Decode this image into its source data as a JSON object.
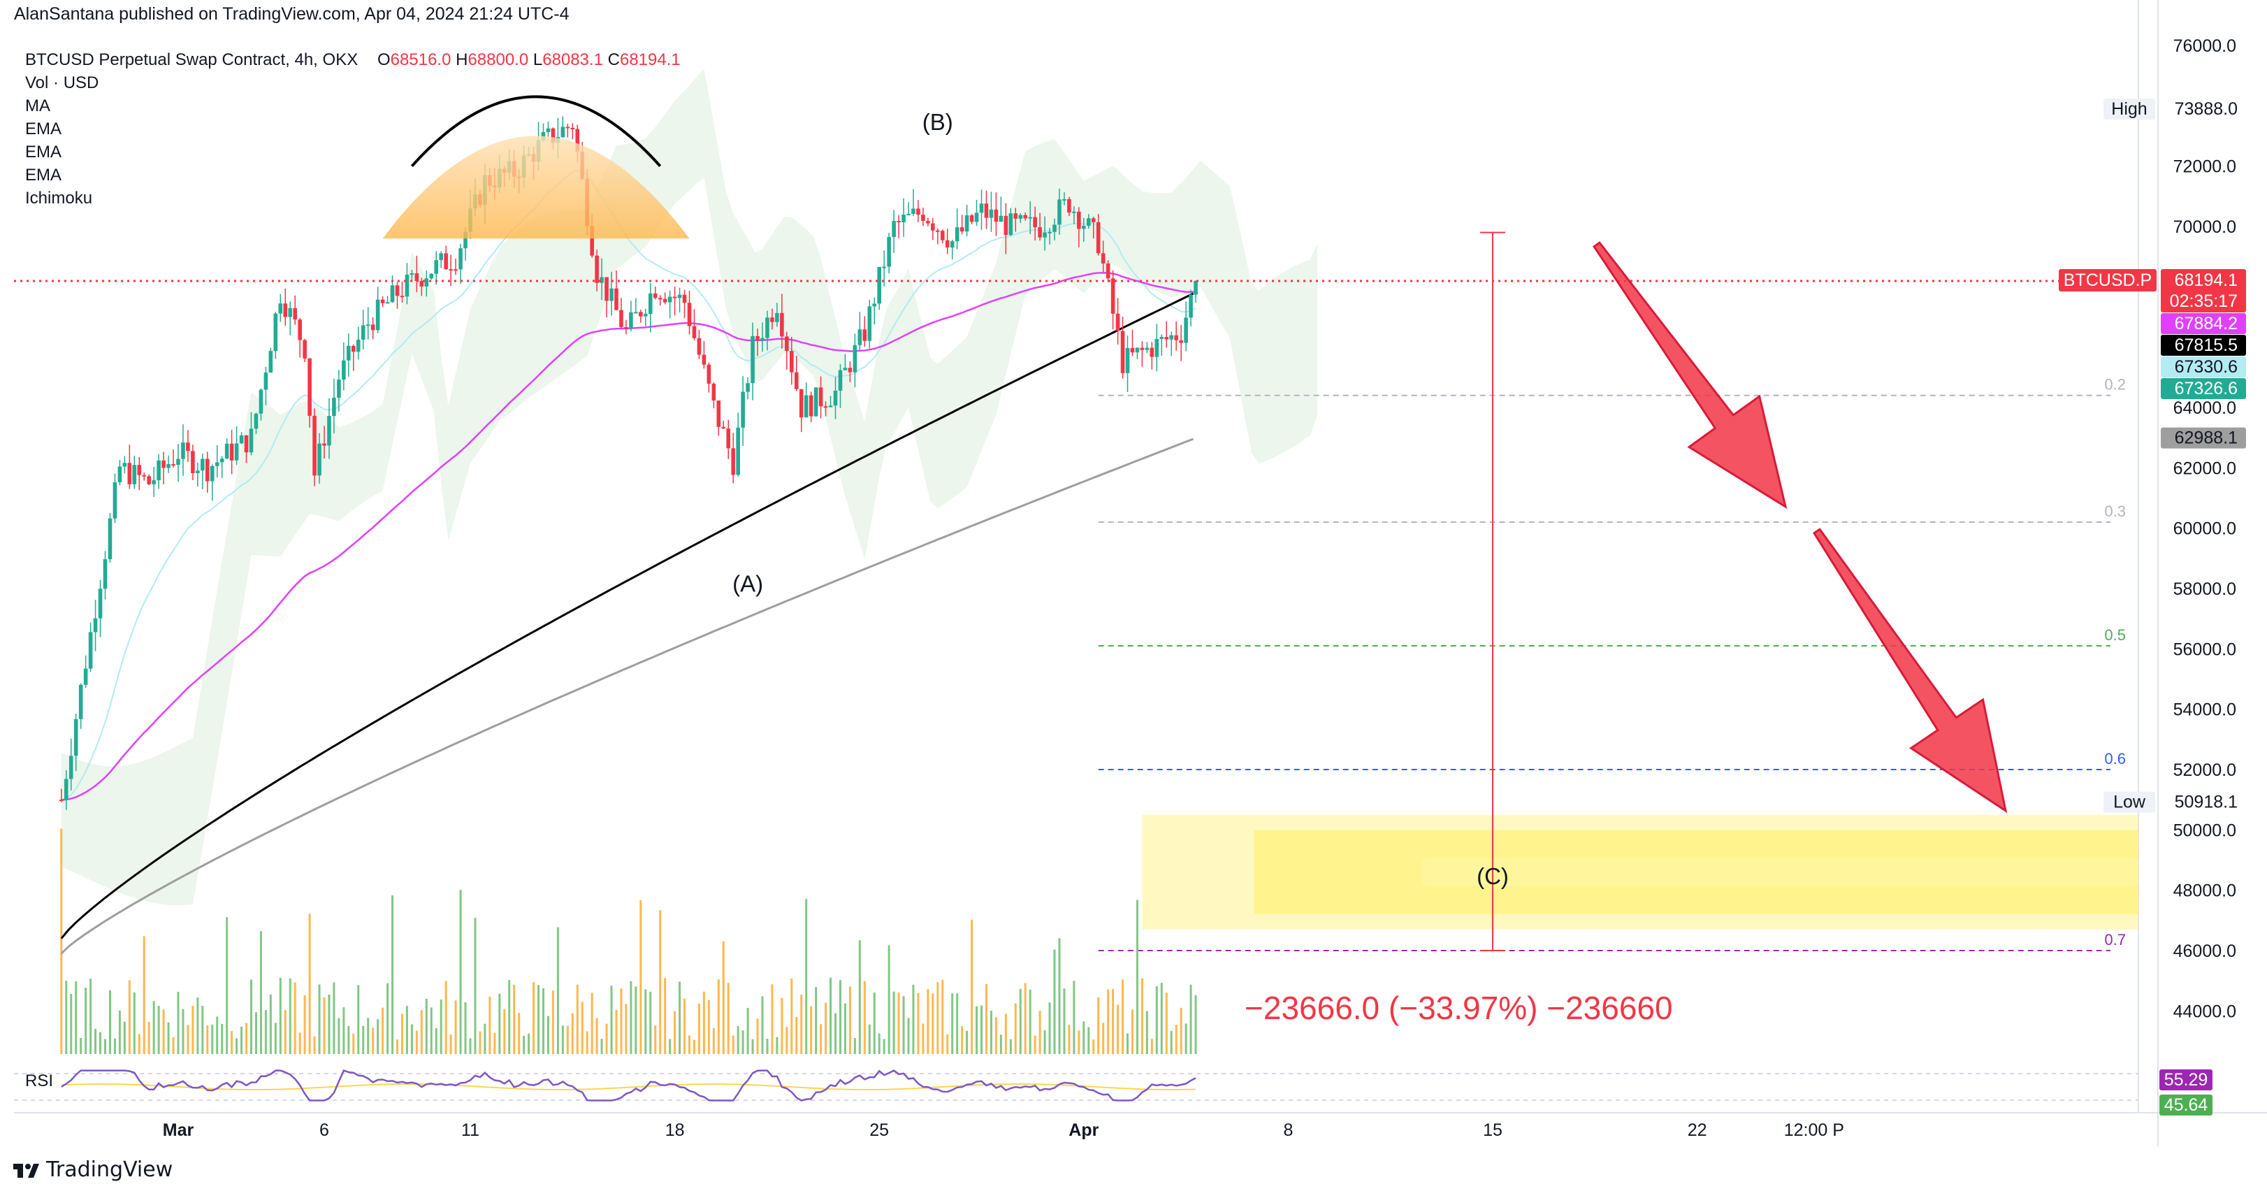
{
  "publish_line": "AlanSantana published on TradingView.com, Apr 04, 2024 21:24 UTC-4",
  "legend": {
    "symbol": "BTCUSD Perpetual Swap Contract, 4h, OKX",
    "ohlc": [
      {
        "k": "O",
        "v": "68516.0"
      },
      {
        "k": "H",
        "v": "68800.0"
      },
      {
        "k": "L",
        "v": "68083.1"
      },
      {
        "k": "C",
        "v": "68194.1"
      }
    ],
    "indicators": [
      "Vol · USD",
      "MA",
      "EMA",
      "EMA",
      "EMA",
      "Ichimoku"
    ]
  },
  "footer_brand": "TradingView",
  "colors": {
    "up": "#22ab94",
    "down": "#f23645",
    "accent_red": "#f23645",
    "ema_pink": "#e040fb",
    "ema_light": "#b2ebf2",
    "ma_black": "#000000",
    "ma_gray": "#9e9e9e",
    "yellow_zone": "#fff176",
    "dome": "#ffb74d"
  },
  "chart_data": {
    "type": "candlestick",
    "symbol": "BTCUSD.P",
    "timeframe": "4h",
    "y_axis": {
      "ticks": [
        "76000.0",
        "74000.0",
        "72000.0",
        "70000.0",
        "68000.0",
        "66000.0",
        "64000.0",
        "62000.0",
        "60000.0",
        "58000.0",
        "56000.0",
        "54000.0",
        "52000.0",
        "50000.0",
        "48000.0",
        "46000.0",
        "44000.0"
      ],
      "range": [
        42400,
        76500
      ]
    },
    "x_axis": {
      "ticks": [
        {
          "label": "Mar",
          "date": "2024-03-01"
        },
        {
          "label": "6",
          "date": "2024-03-06"
        },
        {
          "label": "11",
          "date": "2024-03-11"
        },
        {
          "label": "18",
          "date": "2024-03-18"
        },
        {
          "label": "25",
          "date": "2024-03-25"
        },
        {
          "label": "Apr",
          "date": "2024-04-01"
        },
        {
          "label": "8",
          "date": "2024-04-08"
        },
        {
          "label": "15",
          "date": "2024-04-15"
        },
        {
          "label": "22",
          "date": "2024-04-22"
        },
        {
          "label": "12:00 P",
          "date": "2024-04-26"
        }
      ]
    },
    "price_path": [
      [
        "2024-02-26T00:00",
        51000
      ],
      [
        "2024-02-27T00:00",
        56500
      ],
      [
        "2024-02-28T00:00",
        62000
      ],
      [
        "2024-02-29T00:00",
        61500
      ],
      [
        "2024-03-01T00:00",
        62500
      ],
      [
        "2024-03-02T00:00",
        62000
      ],
      [
        "2024-03-03T12:00",
        63000
      ],
      [
        "2024-03-04T12:00",
        67800
      ],
      [
        "2024-03-05T08:00",
        66000
      ],
      [
        "2024-03-05T16:00",
        61800
      ],
      [
        "2024-03-06T12:00",
        65000
      ],
      [
        "2024-03-07T12:00",
        66800
      ],
      [
        "2024-03-08T12:00",
        67800
      ],
      [
        "2024-03-09T12:00",
        68500
      ],
      [
        "2024-03-10T12:00",
        69000
      ],
      [
        "2024-03-11T12:00",
        71500
      ],
      [
        "2024-03-12T12:00",
        71800
      ],
      [
        "2024-03-13T12:00",
        72800
      ],
      [
        "2024-03-14T12:00",
        73400
      ],
      [
        "2024-03-15T08:00",
        68500
      ],
      [
        "2024-03-16T08:00",
        66500
      ],
      [
        "2024-03-17T08:00",
        68000
      ],
      [
        "2024-03-18T08:00",
        67500
      ],
      [
        "2024-03-19T08:00",
        64000
      ],
      [
        "2024-03-20T00:00",
        62200
      ],
      [
        "2024-03-20T16:00",
        66000
      ],
      [
        "2024-03-21T12:00",
        67500
      ],
      [
        "2024-03-22T08:00",
        64000
      ],
      [
        "2024-03-23T12:00",
        64500
      ],
      [
        "2024-03-24T12:00",
        66500
      ],
      [
        "2024-03-25T12:00",
        70000
      ],
      [
        "2024-03-26T12:00",
        70500
      ],
      [
        "2024-03-27T12:00",
        69500
      ],
      [
        "2024-03-28T12:00",
        70500
      ],
      [
        "2024-03-29T12:00",
        70000
      ],
      [
        "2024-03-30T12:00",
        70000
      ],
      [
        "2024-03-31T12:00",
        70800
      ],
      [
        "2024-04-01T12:00",
        69500
      ],
      [
        "2024-04-02T08:00",
        65500
      ],
      [
        "2024-04-03T08:00",
        66000
      ],
      [
        "2024-04-04T08:00",
        66500
      ],
      [
        "2024-04-04T20:00",
        68194.1
      ]
    ],
    "wave_labels": [
      {
        "text": "(A)",
        "date": "2024-03-20T12:00",
        "price": 57900
      },
      {
        "text": "(B)",
        "date": "2024-03-27T00:00",
        "price": 73200
      },
      {
        "text": "(C)",
        "date": "2024-04-15T00:00",
        "price": 48200
      }
    ],
    "price_tags": [
      {
        "label": "High",
        "value": "73888.0",
        "price": 73888.0,
        "bg": "#ffffff",
        "fg": "#131722",
        "label_bg": "#eef1f6"
      },
      {
        "label": "BTCUSD.P",
        "value": "68194.1",
        "sub": "02:35:17",
        "price": 68194.1,
        "bg": "#f23645",
        "fg": "#ffffff"
      },
      {
        "label": "",
        "value": "67884.2",
        "price": 67884.2,
        "bg": "#e040fb",
        "fg": "#ffffff"
      },
      {
        "label": "",
        "value": "67815.5",
        "price": 67815.5,
        "bg": "#000000",
        "fg": "#ffffff"
      },
      {
        "label": "",
        "value": "67330.6",
        "price": 67330.6,
        "bg": "#b2ebf2",
        "fg": "#131722"
      },
      {
        "label": "",
        "value": "67326.6",
        "price": 67326.6,
        "bg": "#22ab94",
        "fg": "#ffffff"
      },
      {
        "label": "",
        "value": "62988.1",
        "price": 62988.1,
        "bg": "#9e9e9e",
        "fg": "#131722"
      },
      {
        "label": "Low",
        "value": "50918.1",
        "price": 50918.1,
        "bg": "#ffffff",
        "fg": "#131722",
        "label_bg": "#eef1f6"
      }
    ],
    "fib_levels": [
      {
        "label": "0.2",
        "price": 64400,
        "color": "#b2b5be"
      },
      {
        "label": "0.3",
        "price": 60200,
        "color": "#b2b5be"
      },
      {
        "label": "0.5",
        "price": 56100,
        "color": "#4caf50"
      },
      {
        "label": "0.6",
        "price": 52000,
        "color": "#2962ff"
      },
      {
        "label": "0.7",
        "price": 46000,
        "color": "#9c27b0"
      }
    ],
    "target_zone": {
      "from_price": 46700,
      "to_price": 50500,
      "start_date": "2024-04-03T00:00"
    },
    "measure": {
      "text": "−23666.0 (−33.97%) −236660",
      "date": "2024-04-15T00:00",
      "from_price": 69800,
      "to_price": 46000
    },
    "last_price_line": 68194.1,
    "rsi": {
      "label": "RSI",
      "values": [
        "55.29",
        "45.64"
      ]
    }
  }
}
